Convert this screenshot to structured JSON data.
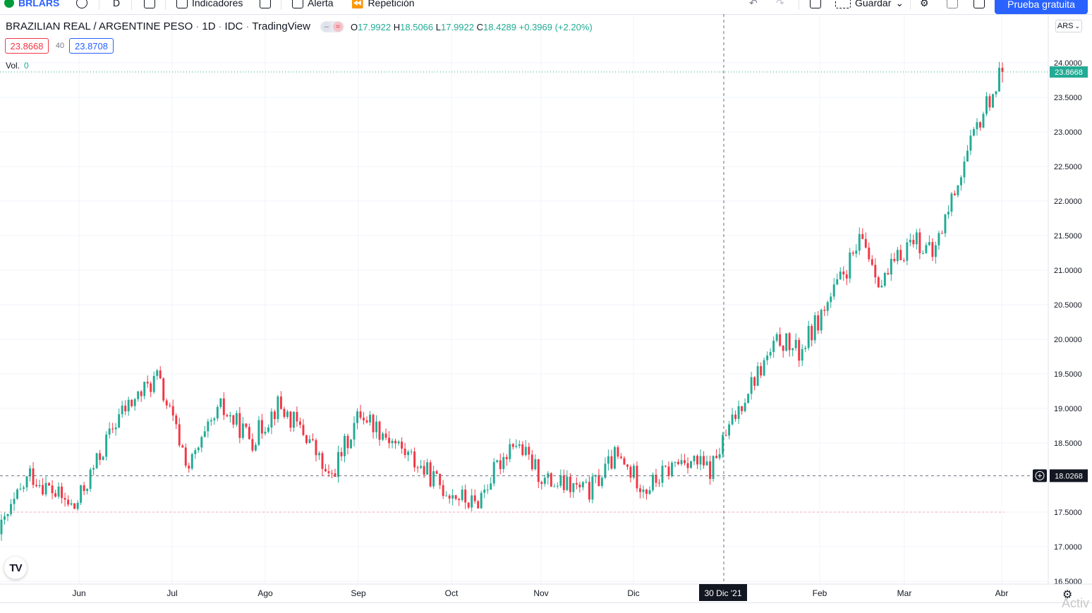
{
  "toolbar": {
    "symbol": "BRLARS",
    "interval": "D",
    "indicators_label": "Indicadores",
    "alert_label": "Alerta",
    "replay_label": "Repetición",
    "save_label": "Guardar",
    "trial_button": "Prueba gratuita"
  },
  "legend": {
    "title": "BRAZILIAN REAL / ARGENTINE PESO",
    "sep": "·",
    "interval": "1D",
    "exchange": "IDC",
    "source": "TradingView",
    "o_label": "O",
    "o": "17.9922",
    "h_label": "H",
    "h": "18.5066",
    "l_label": "L",
    "l": "17.9922",
    "c_label": "C",
    "c": "18.4289",
    "change": "+0.3969 (+2.20%)"
  },
  "trade": {
    "sell_price": "23.8668",
    "spread": "40",
    "buy_price": "23.8708"
  },
  "volume": {
    "label": "Vol.",
    "value": "0"
  },
  "currency": "ARS",
  "watermark": "Activ",
  "colors": {
    "up": "#22ab94",
    "down": "#f23645",
    "accent": "#2962ff",
    "grid": "#f0f3fa"
  },
  "chart_data": {
    "type": "candlestick",
    "title": "BRAZILIAN REAL / ARGENTINE PESO",
    "ylim": [
      16.5,
      24.0
    ],
    "y_ticks": [
      "16.5000",
      "17.0000",
      "17.5000",
      "18.0000",
      "18.5000",
      "19.0000",
      "19.5000",
      "20.0000",
      "20.5000",
      "21.0000",
      "21.5000",
      "22.0000",
      "22.5000",
      "23.0000",
      "23.5000",
      "24.0000"
    ],
    "x_labels": [
      "Jun",
      "Jul",
      "Ago",
      "Sep",
      "Oct",
      "Nov",
      "Dic",
      "Feb",
      "Mar",
      "Abr"
    ],
    "crosshair_date": "30 Dic '21",
    "crosshair_price": "18.0268",
    "last_price": "23.8668",
    "grid": true,
    "series": [
      {
        "from": 17.18,
        "to": 18.05,
        "days": 10
      },
      {
        "from": 18.05,
        "to": 17.55,
        "days": 14
      },
      {
        "from": 17.55,
        "to": 18.9,
        "days": 14
      },
      {
        "from": 18.9,
        "to": 19.45,
        "days": 12
      },
      {
        "from": 19.45,
        "to": 18.15,
        "days": 10
      },
      {
        "from": 18.15,
        "to": 19.0,
        "days": 10
      },
      {
        "from": 19.0,
        "to": 18.55,
        "days": 10
      },
      {
        "from": 18.55,
        "to": 19.05,
        "days": 8
      },
      {
        "from": 19.05,
        "to": 18.55,
        "days": 10
      },
      {
        "from": 18.55,
        "to": 17.95,
        "days": 6
      },
      {
        "from": 17.95,
        "to": 18.95,
        "days": 10
      },
      {
        "from": 18.95,
        "to": 18.45,
        "days": 12
      },
      {
        "from": 18.45,
        "to": 17.85,
        "days": 14
      },
      {
        "from": 17.85,
        "to": 17.6,
        "days": 10
      },
      {
        "from": 17.6,
        "to": 18.55,
        "days": 12
      },
      {
        "from": 18.55,
        "to": 17.95,
        "days": 10
      },
      {
        "from": 17.95,
        "to": 17.8,
        "days": 14
      },
      {
        "from": 17.8,
        "to": 18.3,
        "days": 8
      },
      {
        "from": 18.3,
        "to": 17.85,
        "days": 10
      },
      {
        "from": 17.85,
        "to": 18.3,
        "days": 12
      },
      {
        "from": 18.3,
        "to": 18.1,
        "days": 8
      },
      {
        "from": 18.1,
        "to": 19.3,
        "days": 12
      },
      {
        "from": 19.3,
        "to": 20.0,
        "days": 10
      },
      {
        "from": 20.0,
        "to": 19.8,
        "days": 6
      },
      {
        "from": 19.8,
        "to": 20.6,
        "days": 10
      },
      {
        "from": 20.6,
        "to": 21.45,
        "days": 10
      },
      {
        "from": 21.45,
        "to": 20.8,
        "days": 6
      },
      {
        "from": 20.8,
        "to": 21.5,
        "days": 10
      },
      {
        "from": 21.5,
        "to": 21.2,
        "days": 6
      },
      {
        "from": 21.2,
        "to": 22.3,
        "days": 8
      },
      {
        "from": 22.3,
        "to": 23.3,
        "days": 8
      },
      {
        "from": 23.3,
        "to": 23.87,
        "days": 6
      }
    ]
  }
}
